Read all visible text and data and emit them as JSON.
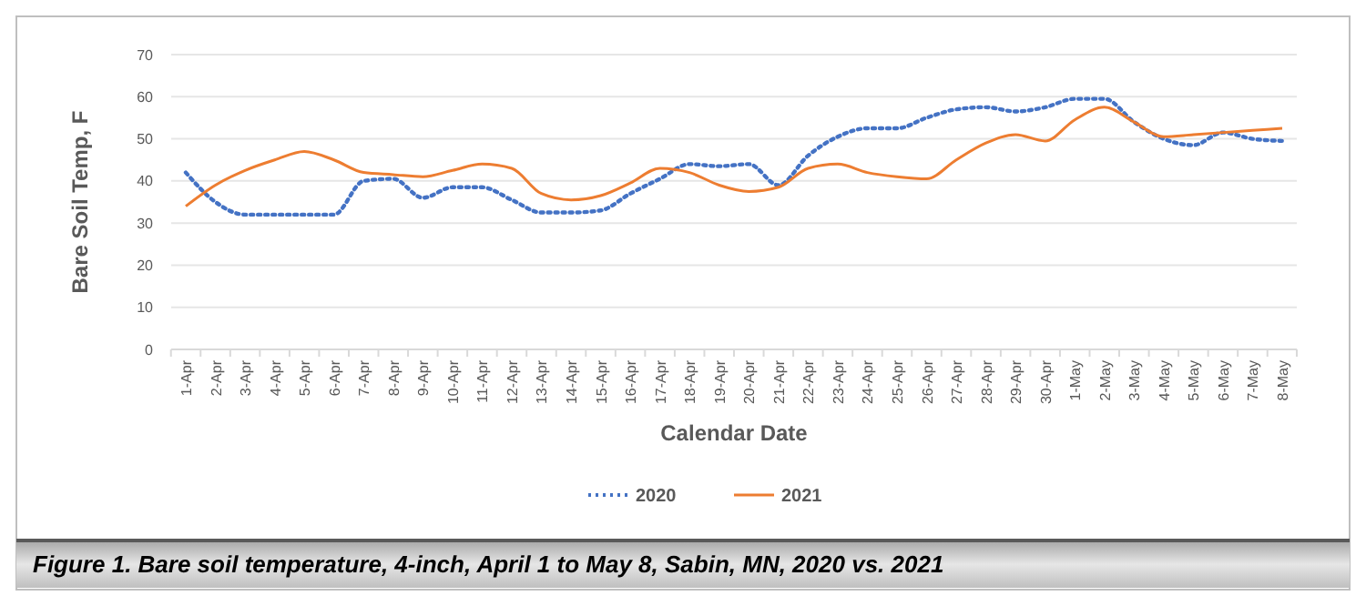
{
  "chart_data": {
    "type": "line",
    "ylabel": "Bare Soil Temp, F",
    "xlabel": "Calendar Date",
    "categories": [
      "1-Apr",
      "2-Apr",
      "3-Apr",
      "4-Apr",
      "5-Apr",
      "6-Apr",
      "7-Apr",
      "8-Apr",
      "9-Apr",
      "10-Apr",
      "11-Apr",
      "12-Apr",
      "13-Apr",
      "14-Apr",
      "15-Apr",
      "16-Apr",
      "17-Apr",
      "18-Apr",
      "19-Apr",
      "20-Apr",
      "21-Apr",
      "22-Apr",
      "23-Apr",
      "24-Apr",
      "25-Apr",
      "26-Apr",
      "27-Apr",
      "28-Apr",
      "29-Apr",
      "30-Apr",
      "1-May",
      "2-May",
      "3-May",
      "4-May",
      "5-May",
      "6-May",
      "7-May",
      "8-May"
    ],
    "series": [
      {
        "name": "2020",
        "color": "#4472c4",
        "line_style": "dotted",
        "values": [
          42,
          35,
          32,
          32,
          32,
          32,
          40,
          40.5,
          36,
          38.5,
          38.5,
          35.5,
          32.5,
          32.5,
          33,
          37,
          40.5,
          44,
          43.5,
          44,
          39,
          46,
          50.5,
          52.5,
          52.5,
          55,
          57,
          57.5,
          56.5,
          57.5,
          59.5,
          59.5,
          54,
          50,
          48.5,
          51.5,
          50,
          49.5
        ]
      },
      {
        "name": "2021",
        "color": "#ed7d31",
        "line_style": "solid",
        "values": [
          34,
          39,
          42.5,
          45,
          47,
          45,
          42,
          41.5,
          41,
          42.5,
          44,
          43,
          37,
          35.5,
          36.5,
          39.5,
          43,
          42,
          39,
          37.5,
          38.5,
          43,
          44,
          42,
          41,
          40.5,
          45,
          49,
          51,
          49.5,
          54.5,
          57.5,
          54,
          50.5,
          51,
          51.5,
          52,
          52.5
        ]
      }
    ],
    "ylim": [
      0,
      70
    ],
    "yticks": [
      0,
      10,
      20,
      30,
      40,
      50,
      60,
      70
    ],
    "grid": "y",
    "legend": "bottom",
    "marker": "none",
    "annotations": [
      "Figure 1. Bare soil temperature, 4-inch, April 1 to May 8, Sabin, MN, 2020 vs. 2021"
    ]
  }
}
